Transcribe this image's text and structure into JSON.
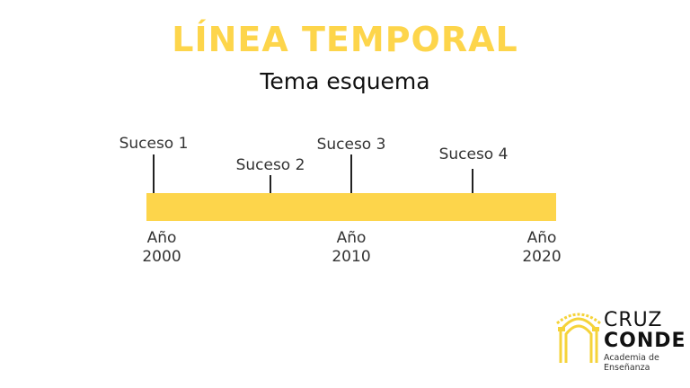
{
  "title": "LÍNEA TEMPORAL",
  "subtitle": "Tema esquema",
  "colors": {
    "accent": "#FDD54B",
    "text": "#333333"
  },
  "events": [
    {
      "label": "Suceso 1"
    },
    {
      "label": "Suceso 2"
    },
    {
      "label": "Suceso 3"
    },
    {
      "label": "Suceso 4"
    }
  ],
  "years": [
    {
      "word": "Año",
      "year": "2000"
    },
    {
      "word": "Año",
      "year": "2010"
    },
    {
      "word": "Año",
      "year": "2020"
    }
  ],
  "logo": {
    "line1": "CRUZ",
    "line2": "CONDE",
    "line3": "Academia de Enseñanza",
    "icon": "arch-icon"
  }
}
